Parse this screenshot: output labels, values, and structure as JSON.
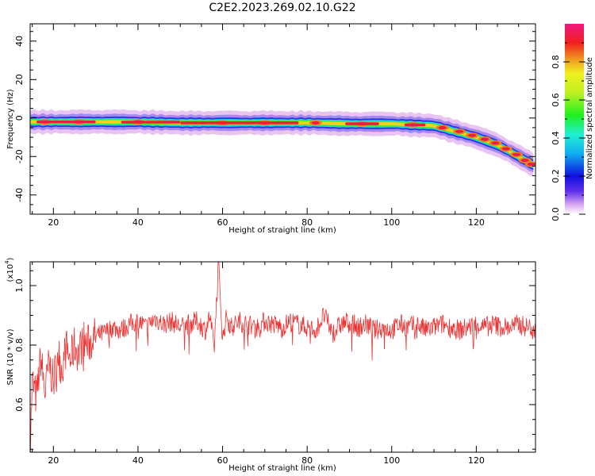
{
  "title": "C2E2.2023.269.02.10.G22",
  "chart_data": [
    {
      "type": "heatmap",
      "ylabel": "Frequency (Hz)",
      "xlabel": "Height of straight line (km)",
      "xlim": [
        14.5,
        134
      ],
      "ylim": [
        -50,
        49
      ],
      "xticks": [
        20,
        40,
        60,
        80,
        100,
        120
      ],
      "yticks": [
        -40,
        -20,
        0,
        20,
        40
      ],
      "ridge": {
        "description_free_params": true,
        "x": [
          14.5,
          20,
          30,
          40,
          50,
          60,
          70,
          80,
          90,
          100,
          105,
          110,
          115,
          120,
          125,
          130,
          134
        ],
        "frequency": [
          -2,
          -2,
          -2,
          -2,
          -2.5,
          -2.5,
          -2.5,
          -2.5,
          -3,
          -3,
          -3.5,
          -4,
          -7,
          -10,
          -14,
          -20,
          -25
        ]
      },
      "hot_spots": [
        {
          "x": 18,
          "f": -2
        },
        {
          "x": 26,
          "f": -2
        },
        {
          "x": 40,
          "f": -2
        },
        {
          "x": 60,
          "f": -2.5
        },
        {
          "x": 70,
          "f": -2.5
        },
        {
          "x": 82,
          "f": -2.5
        },
        {
          "x": 93,
          "f": -3
        },
        {
          "x": 105,
          "f": -3.5
        },
        {
          "x": 112,
          "f": -5
        },
        {
          "x": 116,
          "f": -7
        },
        {
          "x": 119,
          "f": -9
        },
        {
          "x": 122,
          "f": -11
        },
        {
          "x": 124.5,
          "f": -13
        },
        {
          "x": 127,
          "f": -16
        },
        {
          "x": 129.5,
          "f": -19
        },
        {
          "x": 131.5,
          "f": -22
        },
        {
          "x": 133,
          "f": -24
        }
      ]
    },
    {
      "type": "colorbar",
      "label": "Normalized spectral amplitude",
      "range": [
        0,
        1
      ],
      "ticks": [
        "0.0",
        "0.2",
        "0.4",
        "0.6",
        "0.8"
      ],
      "tick_values": [
        0.0,
        0.2,
        0.4,
        0.6,
        0.8
      ]
    },
    {
      "type": "line",
      "ylabel": "SNR (10 * v/v)",
      "yscale_label": "(x10",
      "yscale_exp": "4",
      "yscale_close": ")",
      "xlabel": "Height of straight line (km)",
      "xlim": [
        14.5,
        134
      ],
      "ylim": [
        0.44,
        1.08
      ],
      "xticks": [
        20,
        40,
        60,
        80,
        100,
        120
      ],
      "yticks": [
        "0.6",
        "0.8",
        "1.0"
      ],
      "ytick_values": [
        0.6,
        0.8,
        1.0
      ],
      "color": "#ee3333",
      "x": [
        14.5,
        15,
        16,
        17,
        18,
        19,
        20,
        21,
        22,
        23,
        24,
        25,
        26,
        27,
        28,
        30,
        32,
        34,
        36,
        38,
        40,
        42,
        44,
        46,
        48,
        50,
        52,
        54,
        56,
        57,
        58,
        59,
        60,
        61,
        62,
        64,
        66,
        68,
        70,
        72,
        74,
        76,
        78,
        80,
        82,
        84,
        86,
        88,
        90,
        92,
        94,
        96,
        98,
        100,
        102,
        104,
        106,
        108,
        110,
        112,
        114,
        116,
        118,
        120,
        122,
        124,
        126,
        128,
        130,
        132,
        134
      ],
      "y": [
        0.44,
        0.68,
        0.62,
        0.76,
        0.64,
        0.74,
        0.67,
        0.78,
        0.72,
        0.79,
        0.75,
        0.8,
        0.77,
        0.82,
        0.8,
        0.83,
        0.84,
        0.86,
        0.85,
        0.87,
        0.88,
        0.86,
        0.89,
        0.87,
        0.88,
        0.86,
        0.87,
        0.88,
        0.85,
        0.9,
        0.78,
        1.08,
        0.82,
        0.9,
        0.86,
        0.88,
        0.87,
        0.86,
        0.88,
        0.87,
        0.86,
        0.88,
        0.87,
        0.86,
        0.85,
        0.9,
        0.84,
        0.87,
        0.88,
        0.86,
        0.87,
        0.85,
        0.86,
        0.85,
        0.87,
        0.86,
        0.87,
        0.85,
        0.86,
        0.87,
        0.86,
        0.85,
        0.86,
        0.87,
        0.86,
        0.87,
        0.86,
        0.86,
        0.87,
        0.86,
        0.86
      ]
    }
  ]
}
